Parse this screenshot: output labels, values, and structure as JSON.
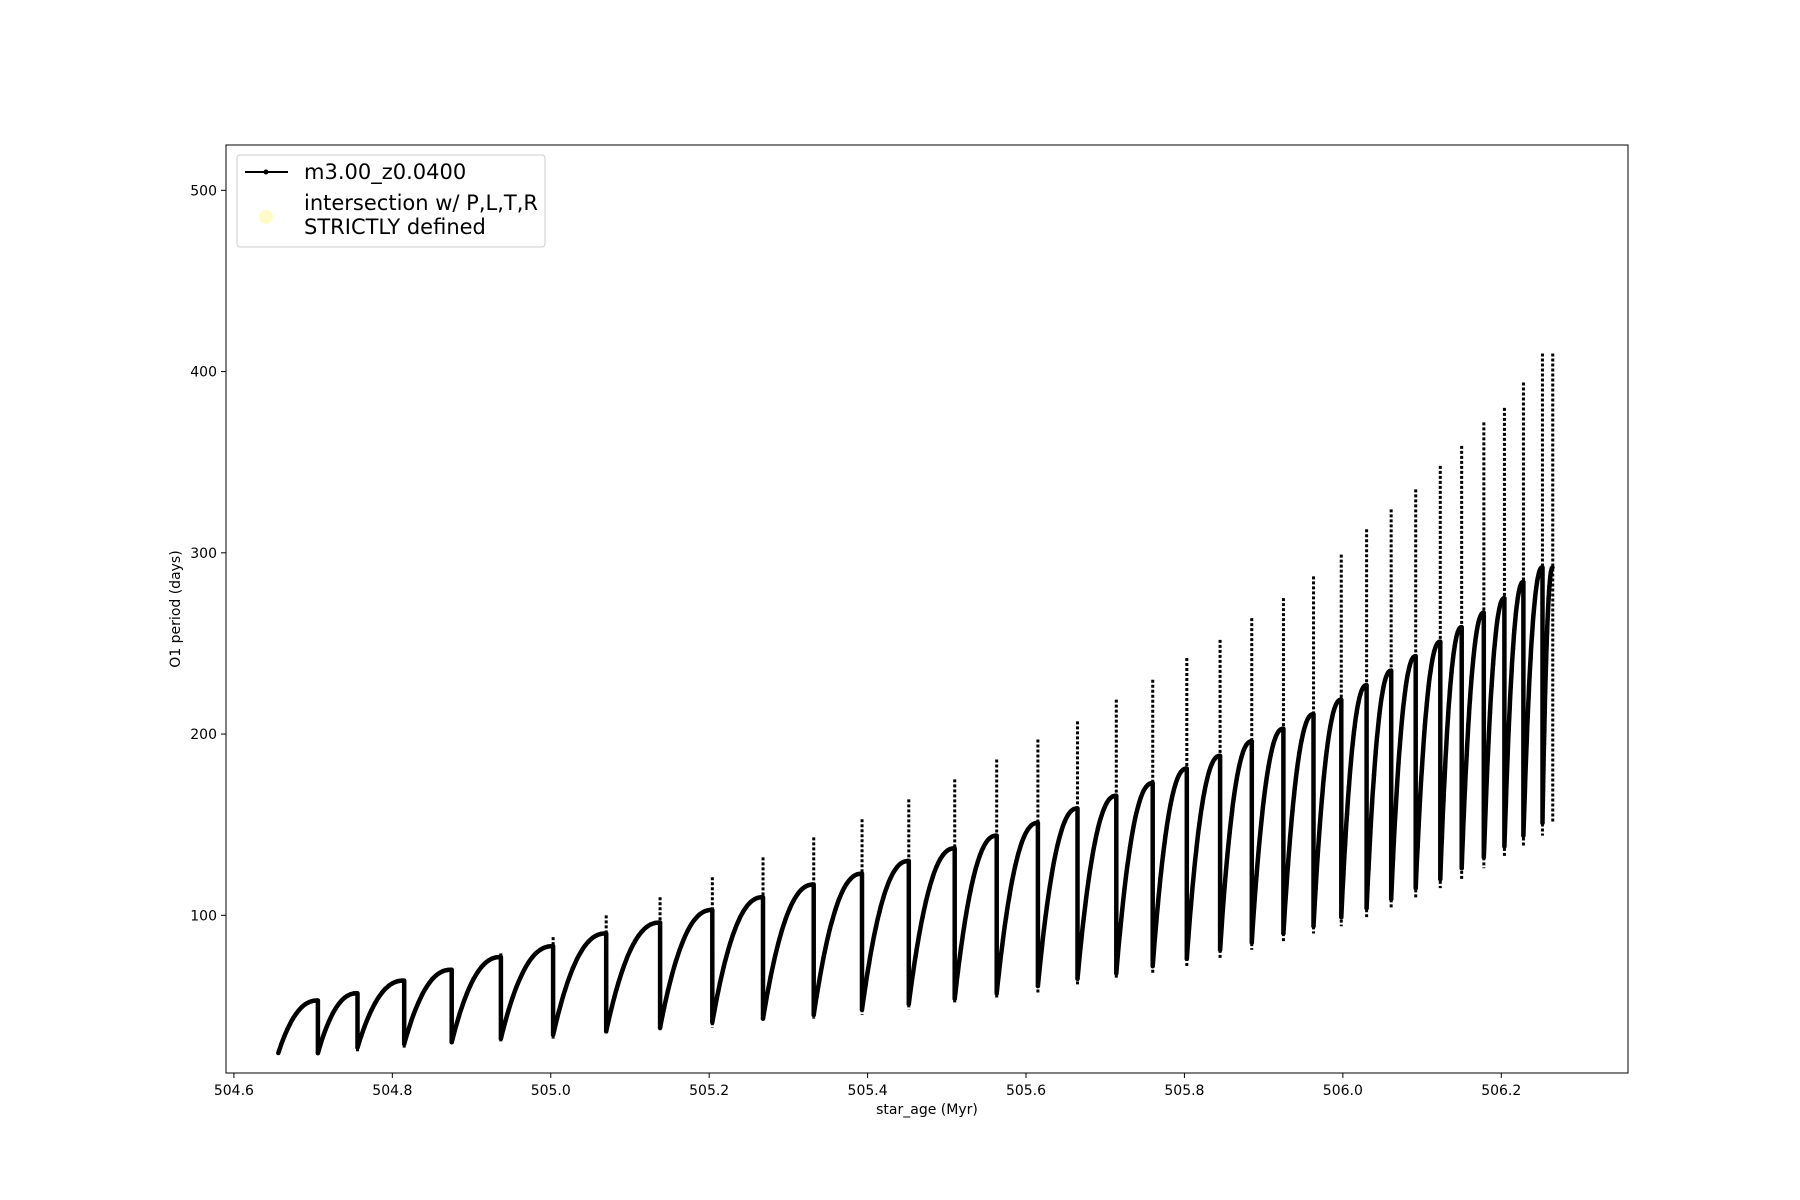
{
  "chart_data": {
    "type": "line",
    "title": "",
    "xlabel": "star_age (Myr)",
    "ylabel": "O1 period (days)",
    "xlim": [
      504.59,
      506.36
    ],
    "ylim": [
      13,
      525
    ],
    "xticks": [
      504.6,
      504.8,
      505.0,
      505.2,
      505.4,
      505.6,
      505.8,
      506.0,
      506.2
    ],
    "xtick_labels": [
      "504.6",
      "504.8",
      "505.0",
      "505.2",
      "505.4",
      "505.6",
      "505.8",
      "506.0",
      "506.2"
    ],
    "yticks": [
      100,
      200,
      300,
      400,
      500
    ],
    "ytick_labels": [
      "100",
      "200",
      "300",
      "400",
      "500"
    ],
    "grid": false,
    "legend_position": "upper-left",
    "series_color": "#000000",
    "marker_color": "#fffac8",
    "legend": [
      {
        "label": "m3.00_z0.0400",
        "style": "black line with small dot markers"
      },
      {
        "label_line1": "intersection w/ P,L,T,R",
        "label_line2": "STRICTLY defined",
        "style": "pale yellow circle marker"
      }
    ],
    "series": [
      {
        "name": "m3.00_z0.0400",
        "note": "thermal pulse cycles: each cycle rises from min to max, then drops; spikes reach spike value",
        "cycles": [
          {
            "x_start": 504.656,
            "x_end": 504.706,
            "min": 24,
            "max": 53,
            "spike": 45
          },
          {
            "x_start": 504.706,
            "x_end": 504.756,
            "min": 24,
            "max": 57,
            "spike": 57
          },
          {
            "x_start": 504.756,
            "x_end": 504.815,
            "min": 27,
            "max": 64,
            "spike": 64
          },
          {
            "x_start": 504.815,
            "x_end": 504.875,
            "min": 29,
            "max": 70,
            "spike": 70
          },
          {
            "x_start": 504.875,
            "x_end": 504.937,
            "min": 30,
            "max": 77,
            "spike": 79
          },
          {
            "x_start": 504.937,
            "x_end": 505.003,
            "min": 32,
            "max": 83,
            "spike": 88
          },
          {
            "x_start": 505.003,
            "x_end": 505.07,
            "min": 34,
            "max": 90,
            "spike": 100
          },
          {
            "x_start": 505.07,
            "x_end": 505.138,
            "min": 36,
            "max": 96,
            "spike": 110
          },
          {
            "x_start": 505.138,
            "x_end": 505.204,
            "min": 38,
            "max": 103,
            "spike": 121
          },
          {
            "x_start": 505.204,
            "x_end": 505.268,
            "min": 41,
            "max": 110,
            "spike": 132
          },
          {
            "x_start": 505.268,
            "x_end": 505.332,
            "min": 43,
            "max": 117,
            "spike": 143
          },
          {
            "x_start": 505.332,
            "x_end": 505.393,
            "min": 45,
            "max": 123,
            "spike": 153
          },
          {
            "x_start": 505.393,
            "x_end": 505.452,
            "min": 48,
            "max": 130,
            "spike": 164
          },
          {
            "x_start": 505.452,
            "x_end": 505.51,
            "min": 51,
            "max": 137,
            "spike": 175
          },
          {
            "x_start": 505.51,
            "x_end": 505.563,
            "min": 54,
            "max": 144,
            "spike": 186
          },
          {
            "x_start": 505.563,
            "x_end": 505.615,
            "min": 57,
            "max": 151,
            "spike": 197
          },
          {
            "x_start": 505.615,
            "x_end": 505.665,
            "min": 61,
            "max": 159,
            "spike": 207
          },
          {
            "x_start": 505.665,
            "x_end": 505.714,
            "min": 65,
            "max": 166,
            "spike": 219
          },
          {
            "x_start": 505.714,
            "x_end": 505.76,
            "min": 68,
            "max": 173,
            "spike": 230
          },
          {
            "x_start": 505.76,
            "x_end": 505.803,
            "min": 72,
            "max": 181,
            "spike": 242
          },
          {
            "x_start": 505.803,
            "x_end": 505.845,
            "min": 76,
            "max": 188,
            "spike": 252
          },
          {
            "x_start": 505.845,
            "x_end": 505.885,
            "min": 81,
            "max": 196,
            "spike": 264
          },
          {
            "x_start": 505.885,
            "x_end": 505.925,
            "min": 85,
            "max": 203,
            "spike": 275
          },
          {
            "x_start": 505.925,
            "x_end": 505.963,
            "min": 90,
            "max": 211,
            "spike": 287
          },
          {
            "x_start": 505.963,
            "x_end": 505.998,
            "min": 94,
            "max": 219,
            "spike": 299
          },
          {
            "x_start": 505.998,
            "x_end": 506.03,
            "min": 99,
            "max": 227,
            "spike": 313
          },
          {
            "x_start": 506.03,
            "x_end": 506.061,
            "min": 104,
            "max": 235,
            "spike": 324
          },
          {
            "x_start": 506.061,
            "x_end": 506.092,
            "min": 109,
            "max": 243,
            "spike": 335
          },
          {
            "x_start": 506.092,
            "x_end": 506.123,
            "min": 115,
            "max": 251,
            "spike": 348
          },
          {
            "x_start": 506.123,
            "x_end": 506.15,
            "min": 120,
            "max": 259,
            "spike": 359
          },
          {
            "x_start": 506.15,
            "x_end": 506.178,
            "min": 126,
            "max": 267,
            "spike": 372
          },
          {
            "x_start": 506.178,
            "x_end": 506.204,
            "min": 132,
            "max": 275,
            "spike": 380
          },
          {
            "x_start": 506.204,
            "x_end": 506.228,
            "min": 138,
            "max": 284,
            "spike": 394
          },
          {
            "x_start": 506.228,
            "x_end": 506.252,
            "min": 144,
            "max": 292,
            "spike": 410
          },
          {
            "x_start": 506.252,
            "x_end": 506.265,
            "min": 151,
            "max": 292,
            "spike": 410
          }
        ]
      }
    ]
  }
}
